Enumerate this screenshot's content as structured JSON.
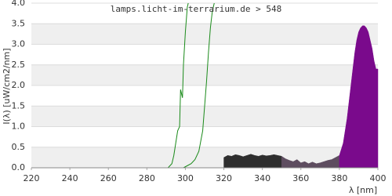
{
  "chart_data": {
    "type": "spectrum",
    "title": "lamps.licht-im-terrarium.de > 548",
    "x_label": "λ [nm]",
    "y_label": "I(λ) [uW/cm2/nm]",
    "xlim": [
      220,
      400
    ],
    "ylim": [
      0,
      4
    ],
    "xticks": [
      220,
      240,
      260,
      280,
      300,
      320,
      340,
      360,
      380,
      400
    ],
    "yticks": [
      {
        "value": 0,
        "label": "0.0"
      },
      {
        "value": 0.5,
        "label": "0.5"
      },
      {
        "value": 1,
        "label": "1.0"
      },
      {
        "value": 1.5,
        "label": "1.5"
      },
      {
        "value": 2,
        "label": "2.0"
      },
      {
        "value": 2.5,
        "label": "2.5"
      },
      {
        "value": 3,
        "label": "3.0"
      },
      {
        "value": 3.5,
        "label": "3.5"
      },
      {
        "value": 4,
        "label": "4.0"
      }
    ],
    "grid": true,
    "series": [
      {
        "kind": "line",
        "color": "#1a8a1a",
        "x": [
          291,
          293,
          294,
          295,
          296,
          297,
          297.5,
          298,
          298.5,
          299,
          300,
          301,
          301.5
        ],
        "values": [
          0,
          0.1,
          0.3,
          0.6,
          0.9,
          1.0,
          1.9,
          1.8,
          1.7,
          2.5,
          3.3,
          3.9,
          4.0
        ]
      },
      {
        "kind": "line",
        "color": "#1a8a1a",
        "x": [
          299,
          301,
          303,
          305,
          307,
          309,
          310,
          311,
          312,
          313,
          314,
          315
        ],
        "values": [
          0,
          0.05,
          0.1,
          0.2,
          0.4,
          0.9,
          1.5,
          2.1,
          2.8,
          3.4,
          3.8,
          4.0
        ]
      },
      {
        "kind": "area",
        "color": "#2e2e2e",
        "x": [
          320,
          322,
          324,
          326,
          328,
          330,
          332,
          334,
          336,
          338,
          340,
          342,
          344,
          346,
          348,
          350
        ],
        "values": [
          0.25,
          0.3,
          0.28,
          0.32,
          0.3,
          0.27,
          0.3,
          0.33,
          0.3,
          0.28,
          0.31,
          0.29,
          0.3,
          0.32,
          0.3,
          0.28
        ]
      },
      {
        "kind": "area",
        "color": "#5e4d60",
        "x": [
          350,
          352,
          354,
          356,
          358,
          360,
          362,
          364,
          366,
          368,
          370,
          372,
          374,
          376,
          378,
          380
        ],
        "values": [
          0.28,
          0.22,
          0.18,
          0.15,
          0.2,
          0.12,
          0.15,
          0.1,
          0.14,
          0.1,
          0.12,
          0.15,
          0.18,
          0.2,
          0.25,
          0.3
        ]
      },
      {
        "kind": "area",
        "color": "#7a0a8c",
        "x": [
          380,
          381,
          382,
          383,
          384,
          385,
          386,
          387,
          388,
          389,
          390,
          391,
          392,
          393,
          394,
          395,
          396,
          397,
          398,
          399,
          400
        ],
        "values": [
          0.3,
          0.45,
          0.6,
          0.9,
          1.2,
          1.6,
          2.0,
          2.4,
          2.8,
          3.1,
          3.3,
          3.4,
          3.45,
          3.45,
          3.4,
          3.3,
          3.1,
          2.9,
          2.6,
          2.4,
          2.4
        ]
      }
    ]
  }
}
